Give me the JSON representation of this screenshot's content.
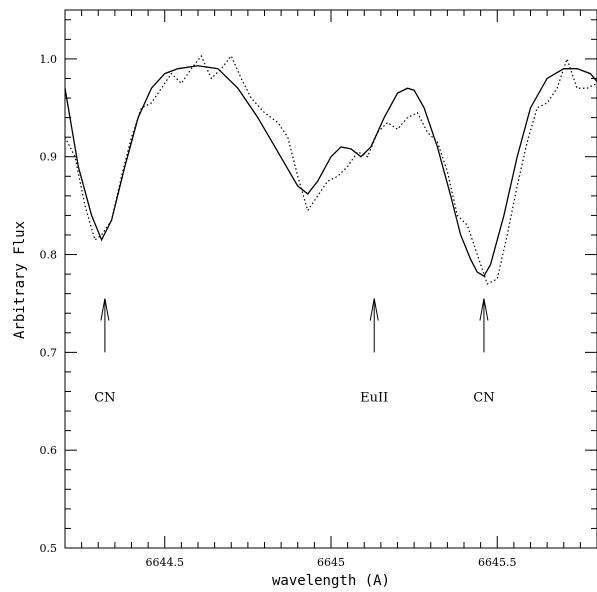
{
  "chart_data": {
    "type": "line",
    "title": "",
    "xlabel": "wavelength (A)",
    "ylabel": "Arbitrary Flux",
    "xlim": [
      6644.2,
      6645.8
    ],
    "ylim": [
      0.5,
      1.05
    ],
    "grid": false,
    "x_tick_labels": [
      "6644.5",
      "6645",
      "6645.5"
    ],
    "y_tick_labels": [
      "0.5",
      "0.6",
      "0.7",
      "0.8",
      "0.9",
      "1.0"
    ],
    "series": [
      {
        "style": "solid",
        "x": [
          6644.2,
          6644.24,
          6644.28,
          6644.31,
          6644.34,
          6644.38,
          6644.42,
          6644.46,
          6644.5,
          6644.54,
          6644.6,
          6644.66,
          6644.72,
          6644.78,
          6644.84,
          6644.9,
          6644.93,
          6644.96,
          6645.0,
          6645.03,
          6645.06,
          6645.09,
          6645.12,
          6645.16,
          6645.2,
          6645.23,
          6645.25,
          6645.28,
          6645.32,
          6645.36,
          6645.39,
          6645.42,
          6645.44,
          6645.46,
          6645.48,
          6645.52,
          6645.56,
          6645.6,
          6645.65,
          6645.7,
          6645.74,
          6645.78,
          6645.8
        ],
        "y": [
          0.97,
          0.89,
          0.84,
          0.815,
          0.835,
          0.89,
          0.94,
          0.97,
          0.985,
          0.99,
          0.993,
          0.99,
          0.97,
          0.94,
          0.905,
          0.87,
          0.862,
          0.875,
          0.9,
          0.91,
          0.908,
          0.9,
          0.91,
          0.94,
          0.965,
          0.97,
          0.968,
          0.95,
          0.91,
          0.86,
          0.82,
          0.795,
          0.782,
          0.778,
          0.79,
          0.84,
          0.9,
          0.95,
          0.98,
          0.99,
          0.99,
          0.985,
          0.977
        ]
      },
      {
        "style": "dotted",
        "x": [
          6644.2,
          6644.23,
          6644.26,
          6644.29,
          6644.31,
          6644.34,
          6644.37,
          6644.4,
          6644.43,
          6644.46,
          6644.49,
          6644.52,
          6644.55,
          6644.58,
          6644.61,
          6644.64,
          6644.67,
          6644.7,
          6644.73,
          6644.76,
          6644.8,
          6644.84,
          6644.87,
          6644.9,
          6644.93,
          6644.96,
          6644.99,
          6645.02,
          6645.05,
          6645.08,
          6645.11,
          6645.14,
          6645.17,
          6645.2,
          6645.23,
          6645.26,
          6645.29,
          6645.32,
          6645.35,
          6645.38,
          6645.41,
          6645.44,
          6645.47,
          6645.5,
          6645.53,
          6645.56,
          6645.59,
          6645.62,
          6645.65,
          6645.68,
          6645.71,
          6645.74,
          6645.77,
          6645.8
        ],
        "y": [
          0.92,
          0.9,
          0.85,
          0.815,
          0.82,
          0.835,
          0.88,
          0.92,
          0.95,
          0.955,
          0.97,
          0.985,
          0.975,
          0.99,
          1.003,
          0.98,
          0.99,
          1.003,
          0.98,
          0.96,
          0.945,
          0.935,
          0.92,
          0.88,
          0.845,
          0.86,
          0.875,
          0.88,
          0.89,
          0.905,
          0.9,
          0.925,
          0.935,
          0.928,
          0.94,
          0.945,
          0.925,
          0.915,
          0.885,
          0.84,
          0.83,
          0.8,
          0.77,
          0.775,
          0.82,
          0.87,
          0.915,
          0.95,
          0.955,
          0.97,
          1.0,
          0.97,
          0.97,
          0.975
        ]
      }
    ],
    "annotations": [
      {
        "label": "CN",
        "x": 6644.32,
        "arrow_from": 0.7,
        "arrow_to": 0.755,
        "label_y": 0.655
      },
      {
        "label": "EuII",
        "x": 6645.13,
        "arrow_from": 0.7,
        "arrow_to": 0.755,
        "label_y": 0.655
      },
      {
        "label": "CN",
        "x": 6645.46,
        "arrow_from": 0.7,
        "arrow_to": 0.755,
        "label_y": 0.655
      }
    ]
  }
}
